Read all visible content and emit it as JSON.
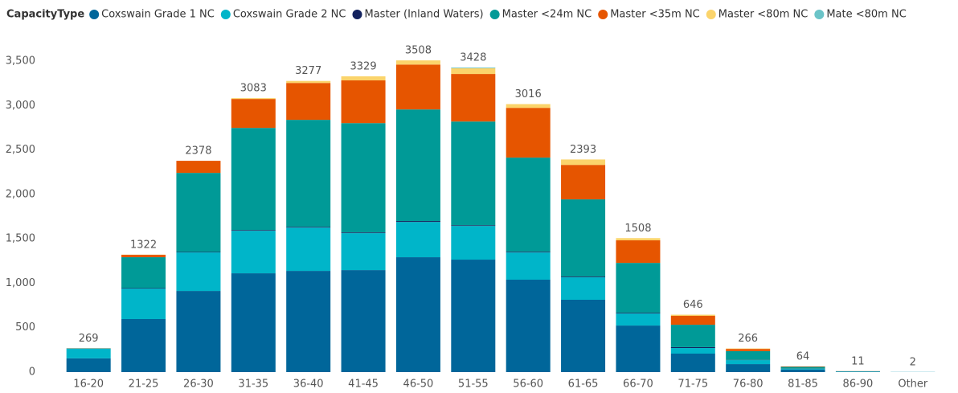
{
  "chart_data": {
    "type": "stacked_bar",
    "legend_title": "CapacityType",
    "categories": [
      "16-20",
      "21-25",
      "26-30",
      "31-35",
      "36-40",
      "41-45",
      "46-50",
      "51-55",
      "56-60",
      "61-65",
      "66-70",
      "71-75",
      "76-80",
      "81-85",
      "86-90",
      "Other"
    ],
    "totals": [
      269,
      1322,
      2378,
      3083,
      3277,
      3329,
      3508,
      3428,
      3016,
      2393,
      1508,
      646,
      266,
      64,
      11,
      2
    ],
    "series": [
      {
        "name": "Coxswain Grade 1 NC",
        "color": "#00669a",
        "values": [
          155,
          597,
          913,
          1112,
          1139,
          1148,
          1293,
          1266,
          1040,
          814,
          524,
          208,
          90,
          30,
          4,
          1
        ]
      },
      {
        "name": "Coxswain Grade 2 NC",
        "color": "#00b5c9",
        "values": [
          110,
          343,
          434,
          479,
          488,
          416,
          397,
          379,
          307,
          253,
          136,
          63,
          45,
          8,
          2,
          1
        ]
      },
      {
        "name": "Master (Inland Waters)",
        "color": "#13225e",
        "values": [
          0,
          5,
          5,
          8,
          8,
          8,
          10,
          8,
          8,
          8,
          8,
          10,
          3,
          1,
          0,
          0
        ]
      },
      {
        "name": "Master <24m NC",
        "color": "#009a97",
        "values": [
          2,
          348,
          890,
          1149,
          1204,
          1230,
          1256,
          1167,
          1059,
          869,
          561,
          252,
          98,
          20,
          4,
          0
        ]
      },
      {
        "name": "Master <35m NC",
        "color": "#e65500",
        "values": [
          2,
          27,
          136,
          326,
          415,
          481,
          505,
          535,
          560,
          388,
          254,
          100,
          25,
          5,
          1,
          0
        ]
      },
      {
        "name": "Master <80m NC",
        "color": "#fbd46b",
        "values": [
          0,
          2,
          0,
          9,
          23,
          46,
          47,
          65,
          42,
          61,
          25,
          13,
          5,
          0,
          0,
          0
        ]
      },
      {
        "name": "Mate <80m NC",
        "color": "#6bc4c8",
        "values": [
          0,
          0,
          0,
          0,
          0,
          0,
          0,
          8,
          0,
          0,
          0,
          0,
          0,
          0,
          0,
          0
        ]
      }
    ],
    "ylim": [
      0,
      3550
    ],
    "yticks": [
      0,
      500,
      {
        "value": 1000,
        "label": "1,000"
      },
      {
        "value": 1500,
        "label": "1,500"
      },
      {
        "value": 2000,
        "label": "2,000"
      },
      {
        "value": 2500,
        "label": "2,500"
      },
      {
        "value": 3000,
        "label": "3,000"
      },
      {
        "value": 3500,
        "label": "3,500"
      }
    ],
    "grid": false
  }
}
